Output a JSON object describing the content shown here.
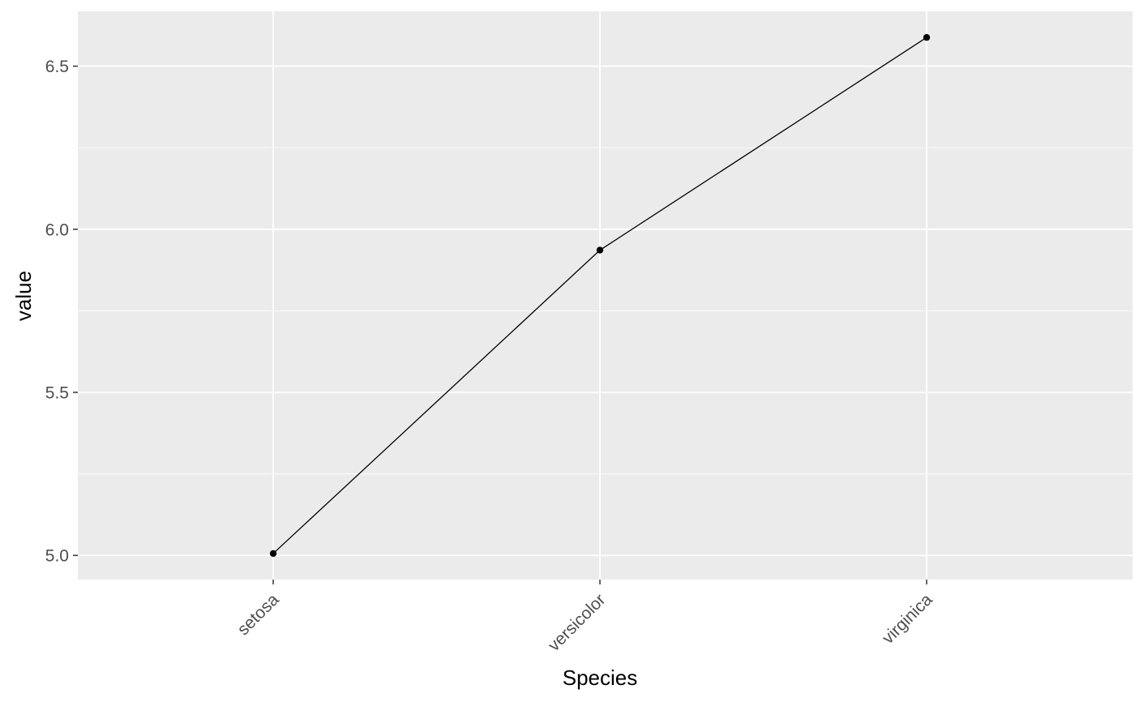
{
  "chart_data": {
    "type": "line",
    "title": "",
    "xlabel": "Species",
    "ylabel": "value",
    "categories": [
      "setosa",
      "versicolor",
      "virginica"
    ],
    "series": [
      {
        "values": [
          5.006,
          5.936,
          6.588
        ]
      }
    ],
    "ylim": [
      4.926,
      6.668
    ],
    "yticks": [
      5.0,
      5.5,
      6.0,
      6.5
    ],
    "yticks_minor": [
      5.25,
      5.75,
      6.25
    ],
    "ytick_labels": [
      "5.0",
      "5.5",
      "6.0",
      "6.5"
    ],
    "grid": true,
    "legend": "none",
    "x_tick_label_rotation": "45 degrees",
    "colors": {
      "panel_background": "#ebebeb",
      "grid_line": "#ffffff",
      "series_line": "#000000",
      "point": "#000000",
      "tick_label": "#4d4d4d",
      "axis_title": "#000000",
      "tick_mark": "#333333"
    }
  }
}
